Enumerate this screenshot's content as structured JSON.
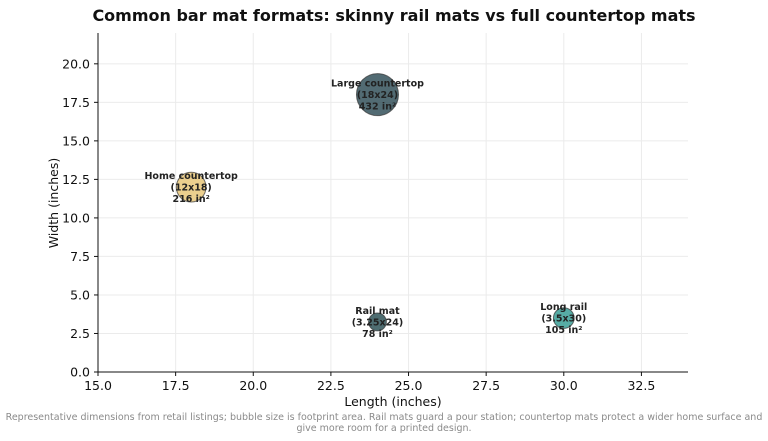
{
  "chart_data": {
    "type": "scatter",
    "title": "Common bar mat formats: skinny rail mats vs full countertop mats",
    "xlabel": "Length (inches)",
    "ylabel": "Width (inches)",
    "xlim": [
      15.0,
      34.0
    ],
    "ylim": [
      0.0,
      22.0
    ],
    "xticks": [
      "15.0",
      "17.5",
      "20.0",
      "22.5",
      "25.0",
      "27.5",
      "30.0",
      "32.5"
    ],
    "yticks": [
      "0.0",
      "2.5",
      "5.0",
      "7.5",
      "10.0",
      "12.5",
      "15.0",
      "17.5",
      "20.0"
    ],
    "grid": true,
    "points": [
      {
        "x": 18,
        "y": 12,
        "area": 216,
        "color": "#e8c77a",
        "label": [
          "Home countertop",
          "(12x18)",
          "216 in²"
        ]
      },
      {
        "x": 24,
        "y": 18,
        "area": 432,
        "color": "#34515b",
        "label": [
          "Large countertop",
          "(18x24)",
          "432 in²"
        ]
      },
      {
        "x": 24,
        "y": 3.25,
        "area": 78,
        "color": "#2f5358",
        "label": [
          "Rail mat",
          "(3.25x24)",
          "78 in²"
        ]
      },
      {
        "x": 30,
        "y": 3.5,
        "area": 105,
        "color": "#3a9e95",
        "label": [
          "Long rail",
          "(3.5x30)",
          "105 in²"
        ]
      }
    ]
  },
  "footnote": "Representative dimensions from retail listings; bubble size is footprint area. Rail mats guard a pour station; countertop mats protect a wider home surface and give more room for a printed design."
}
